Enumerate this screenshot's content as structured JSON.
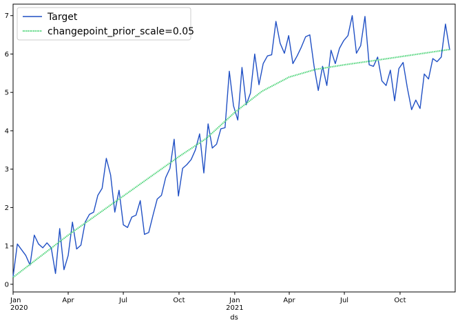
{
  "chart_data": {
    "type": "line",
    "xlabel": "ds",
    "ylabel": "",
    "x_type": "date",
    "xlim": [
      "2020-01-01",
      "2021-12-31"
    ],
    "ylim": [
      -0.2,
      7.3
    ],
    "yticks": [
      0,
      1,
      2,
      3,
      4,
      5,
      6,
      7
    ],
    "xticks": [
      {
        "date": "2020-01-01",
        "label": "Jan",
        "sublabel": "2020"
      },
      {
        "date": "2020-04-01",
        "label": "Apr",
        "sublabel": ""
      },
      {
        "date": "2020-07-01",
        "label": "Jul",
        "sublabel": ""
      },
      {
        "date": "2020-10-01",
        "label": "Oct",
        "sublabel": ""
      },
      {
        "date": "2021-01-01",
        "label": "Jan",
        "sublabel": "2021"
      },
      {
        "date": "2021-04-01",
        "label": "Apr",
        "sublabel": ""
      },
      {
        "date": "2021-07-01",
        "label": "Jul",
        "sublabel": ""
      },
      {
        "date": "2021-10-01",
        "label": "Oct",
        "sublabel": ""
      }
    ],
    "grid": false,
    "legend": "top-left",
    "series": [
      {
        "name": "Target",
        "color": "#1f4fc4",
        "style": "solid",
        "points": [
          [
            "2020-01-01",
            0.2
          ],
          [
            "2020-01-08",
            1.05
          ],
          [
            "2020-01-15",
            0.9
          ],
          [
            "2020-01-22",
            0.75
          ],
          [
            "2020-01-29",
            0.5
          ],
          [
            "2020-02-05",
            1.28
          ],
          [
            "2020-02-12",
            1.05
          ],
          [
            "2020-02-19",
            0.95
          ],
          [
            "2020-02-26",
            1.08
          ],
          [
            "2020-03-04",
            0.95
          ],
          [
            "2020-03-11",
            0.28
          ],
          [
            "2020-03-18",
            1.45
          ],
          [
            "2020-03-25",
            0.38
          ],
          [
            "2020-04-01",
            0.75
          ],
          [
            "2020-04-08",
            1.62
          ],
          [
            "2020-04-15",
            0.92
          ],
          [
            "2020-04-22",
            1.02
          ],
          [
            "2020-04-29",
            1.62
          ],
          [
            "2020-05-06",
            1.82
          ],
          [
            "2020-05-13",
            1.88
          ],
          [
            "2020-05-20",
            2.32
          ],
          [
            "2020-05-27",
            2.5
          ],
          [
            "2020-06-03",
            3.28
          ],
          [
            "2020-06-10",
            2.85
          ],
          [
            "2020-06-17",
            1.88
          ],
          [
            "2020-06-24",
            2.45
          ],
          [
            "2020-07-01",
            1.55
          ],
          [
            "2020-07-08",
            1.48
          ],
          [
            "2020-07-15",
            1.75
          ],
          [
            "2020-07-22",
            1.8
          ],
          [
            "2020-07-29",
            2.18
          ],
          [
            "2020-08-05",
            1.3
          ],
          [
            "2020-08-12",
            1.35
          ],
          [
            "2020-08-19",
            1.8
          ],
          [
            "2020-08-26",
            2.22
          ],
          [
            "2020-09-02",
            2.32
          ],
          [
            "2020-09-09",
            2.78
          ],
          [
            "2020-09-16",
            3.02
          ],
          [
            "2020-09-23",
            3.78
          ],
          [
            "2020-09-30",
            2.3
          ],
          [
            "2020-10-07",
            3.02
          ],
          [
            "2020-10-14",
            3.12
          ],
          [
            "2020-10-21",
            3.25
          ],
          [
            "2020-10-28",
            3.5
          ],
          [
            "2020-11-04",
            3.92
          ],
          [
            "2020-11-11",
            2.9
          ],
          [
            "2020-11-18",
            4.18
          ],
          [
            "2020-11-25",
            3.55
          ],
          [
            "2020-12-02",
            3.65
          ],
          [
            "2020-12-09",
            4.05
          ],
          [
            "2020-12-16",
            4.08
          ],
          [
            "2020-12-23",
            5.55
          ],
          [
            "2020-12-30",
            4.65
          ],
          [
            "2021-01-06",
            4.28
          ],
          [
            "2021-01-13",
            5.65
          ],
          [
            "2021-01-20",
            4.68
          ],
          [
            "2021-01-27",
            4.98
          ],
          [
            "2021-02-03",
            6.0
          ],
          [
            "2021-02-10",
            5.2
          ],
          [
            "2021-02-17",
            5.75
          ],
          [
            "2021-02-24",
            5.95
          ],
          [
            "2021-03-03",
            5.98
          ],
          [
            "2021-03-10",
            6.85
          ],
          [
            "2021-03-17",
            6.28
          ],
          [
            "2021-03-24",
            6.02
          ],
          [
            "2021-03-31",
            6.48
          ],
          [
            "2021-04-07",
            5.75
          ],
          [
            "2021-04-14",
            5.95
          ],
          [
            "2021-04-21",
            6.18
          ],
          [
            "2021-04-28",
            6.45
          ],
          [
            "2021-05-05",
            6.5
          ],
          [
            "2021-05-12",
            5.68
          ],
          [
            "2021-05-19",
            5.05
          ],
          [
            "2021-05-26",
            5.68
          ],
          [
            "2021-06-02",
            5.18
          ],
          [
            "2021-06-09",
            6.1
          ],
          [
            "2021-06-16",
            5.75
          ],
          [
            "2021-06-23",
            6.15
          ],
          [
            "2021-06-30",
            6.35
          ],
          [
            "2021-07-07",
            6.48
          ],
          [
            "2021-07-14",
            7.0
          ],
          [
            "2021-07-21",
            6.02
          ],
          [
            "2021-07-28",
            6.22
          ],
          [
            "2021-08-04",
            6.98
          ],
          [
            "2021-08-11",
            5.72
          ],
          [
            "2021-08-18",
            5.68
          ],
          [
            "2021-08-25",
            5.92
          ],
          [
            "2021-09-01",
            5.3
          ],
          [
            "2021-09-08",
            5.18
          ],
          [
            "2021-09-15",
            5.58
          ],
          [
            "2021-09-22",
            4.78
          ],
          [
            "2021-09-29",
            5.62
          ],
          [
            "2021-10-06",
            5.78
          ],
          [
            "2021-10-13",
            5.12
          ],
          [
            "2021-10-20",
            4.55
          ],
          [
            "2021-10-27",
            4.8
          ],
          [
            "2021-11-03",
            4.58
          ],
          [
            "2021-11-10",
            5.48
          ],
          [
            "2021-11-17",
            5.35
          ],
          [
            "2021-11-24",
            5.88
          ],
          [
            "2021-12-01",
            5.8
          ],
          [
            "2021-12-08",
            5.92
          ],
          [
            "2021-12-15",
            6.78
          ],
          [
            "2021-12-22",
            6.1
          ]
        ]
      },
      {
        "name": "changepoint_prior_scale=0.05",
        "color": "#4fd47a",
        "style": "dotted",
        "points": [
          [
            "2020-01-01",
            0.18
          ],
          [
            "2020-04-01",
            1.28
          ],
          [
            "2020-07-01",
            2.3
          ],
          [
            "2020-10-01",
            3.33
          ],
          [
            "2020-11-15",
            3.8
          ],
          [
            "2021-01-01",
            4.48
          ],
          [
            "2021-02-15",
            5.03
          ],
          [
            "2021-04-01",
            5.4
          ],
          [
            "2021-05-15",
            5.6
          ],
          [
            "2021-07-01",
            5.72
          ],
          [
            "2021-08-15",
            5.82
          ],
          [
            "2021-10-01",
            5.93
          ],
          [
            "2021-12-22",
            6.12
          ]
        ]
      }
    ]
  }
}
